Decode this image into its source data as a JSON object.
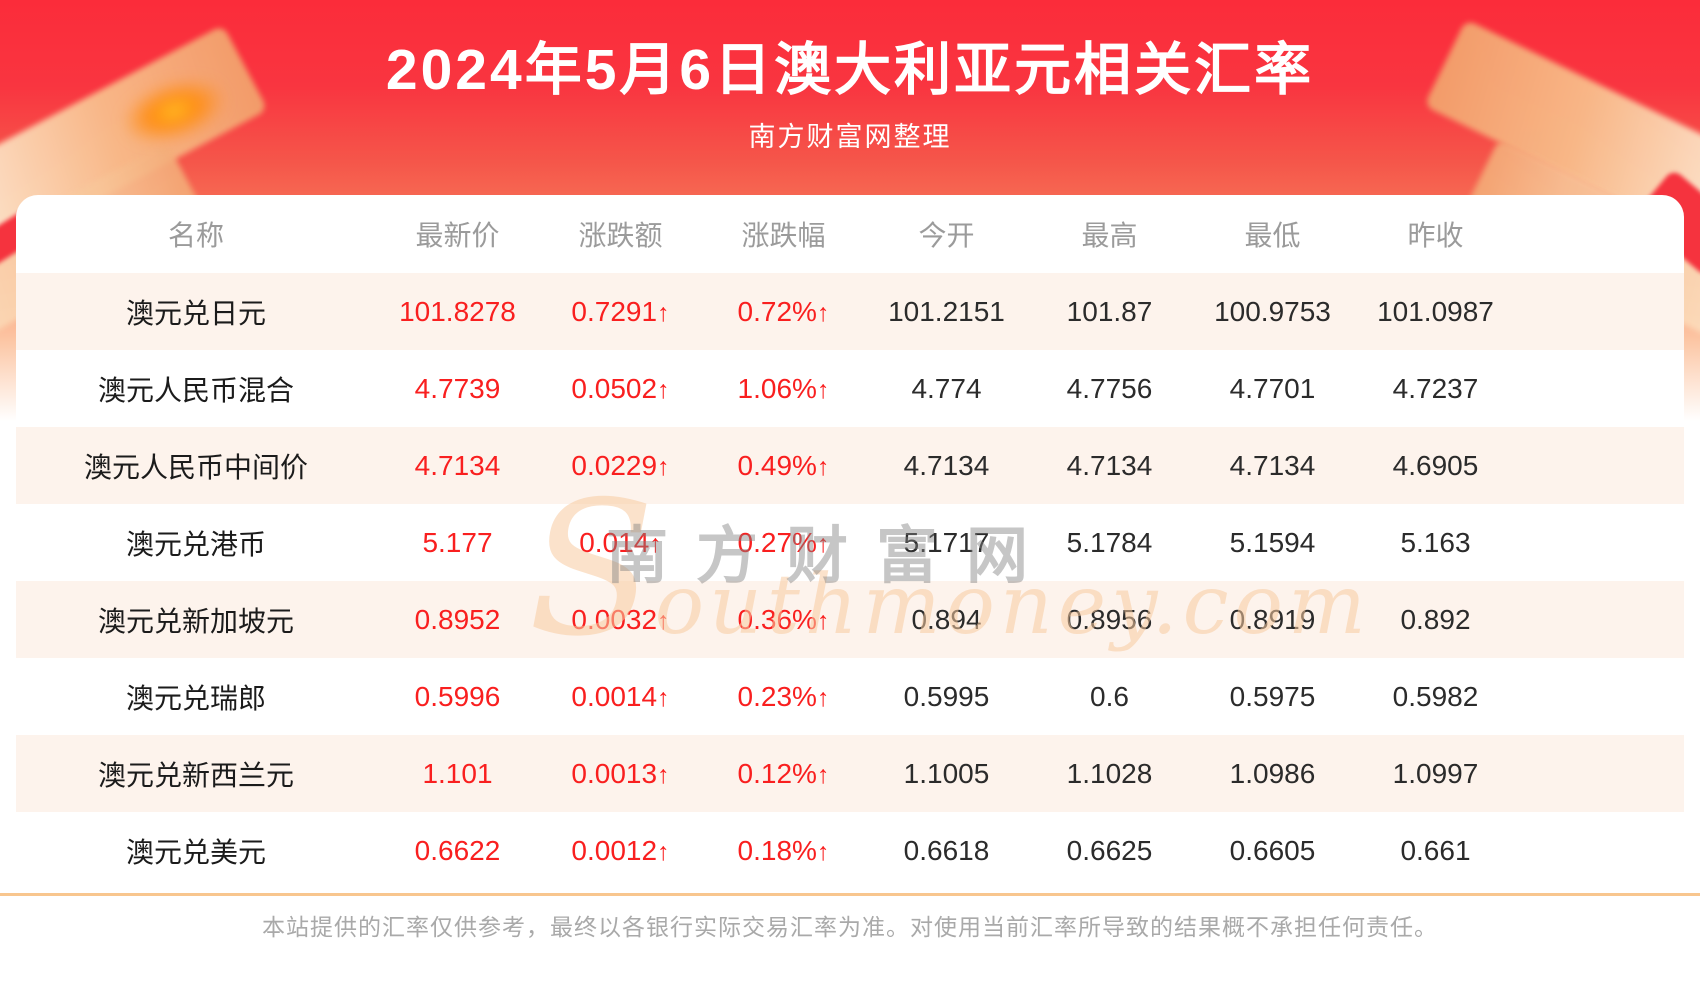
{
  "header": {
    "title": "2024年5月6日澳大利亚元相关汇率",
    "subtitle": "南方财富网整理"
  },
  "table": {
    "columns": [
      "名称",
      "最新价",
      "涨跌额",
      "涨跌幅",
      "今开",
      "最高",
      "最低",
      "昨收"
    ],
    "up_arrow": "↑",
    "rows": [
      {
        "name": "澳元兑日元",
        "latest": "101.8278",
        "change": "0.7291",
        "change_pct": "0.72%",
        "open": "101.2151",
        "high": "101.87",
        "low": "100.9753",
        "prev_close": "101.0987"
      },
      {
        "name": "澳元人民币混合",
        "latest": "4.7739",
        "change": "0.0502",
        "change_pct": "1.06%",
        "open": "4.774",
        "high": "4.7756",
        "low": "4.7701",
        "prev_close": "4.7237"
      },
      {
        "name": "澳元人民币中间价",
        "latest": "4.7134",
        "change": "0.0229",
        "change_pct": "0.49%",
        "open": "4.7134",
        "high": "4.7134",
        "low": "4.7134",
        "prev_close": "4.6905"
      },
      {
        "name": "澳元兑港币",
        "latest": "5.177",
        "change": "0.014",
        "change_pct": "0.27%",
        "open": "5.1717",
        "high": "5.1784",
        "low": "5.1594",
        "prev_close": "5.163"
      },
      {
        "name": "澳元兑新加坡元",
        "latest": "0.8952",
        "change": "0.0032",
        "change_pct": "0.36%",
        "open": "0.894",
        "high": "0.8956",
        "low": "0.8919",
        "prev_close": "0.892"
      },
      {
        "name": "澳元兑瑞郎",
        "latest": "0.5996",
        "change": "0.0014",
        "change_pct": "0.23%",
        "open": "0.5995",
        "high": "0.6",
        "low": "0.5975",
        "prev_close": "0.5982"
      },
      {
        "name": "澳元兑新西兰元",
        "latest": "1.101",
        "change": "0.0013",
        "change_pct": "0.12%",
        "open": "1.1005",
        "high": "1.1028",
        "low": "1.0986",
        "prev_close": "1.0997"
      },
      {
        "name": "澳元兑美元",
        "latest": "0.6622",
        "change": "0.0012",
        "change_pct": "0.18%",
        "open": "0.6618",
        "high": "0.6625",
        "low": "0.6605",
        "prev_close": "0.661"
      }
    ]
  },
  "watermark": {
    "cn": "南方财富网",
    "en_initial": "S",
    "en_rest": "outhmoney.com"
  },
  "footer": {
    "disclaimer": "本站提供的汇率仅供参考，最终以各银行实际交易汇率为准。对使用当前汇率所导致的结果概不承担任何责任。"
  },
  "colors": {
    "banner_red": "#fb2c3a",
    "value_red": "#f91f1f",
    "row_stripe": "#fdf3ec",
    "divider_orange": "#f8c68e",
    "header_text_gray": "#9b9b9b"
  }
}
